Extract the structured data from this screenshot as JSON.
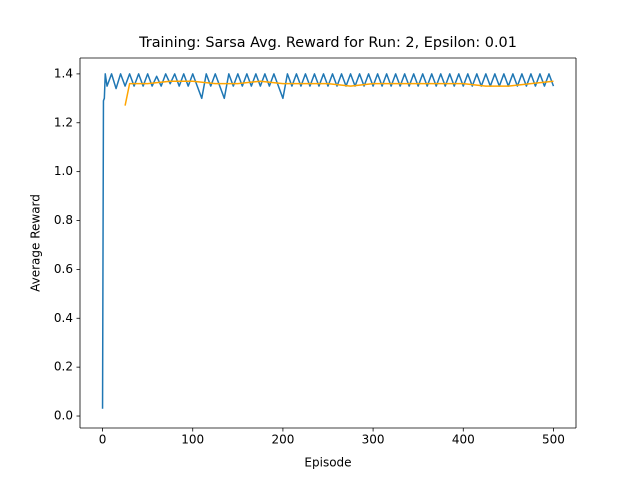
{
  "chart_data": {
    "type": "line",
    "title": "Training: Sarsa Avg. Reward for Run: 2, Epsilon: 0.01",
    "x_label": "Episode",
    "y_label": "Average Reward",
    "xlim": [
      -25,
      525
    ],
    "ylim": [
      -0.049,
      1.465
    ],
    "xticks": [
      0,
      100,
      200,
      300,
      400,
      500
    ],
    "yticks": [
      {
        "value": 0,
        "label": "0.0"
      },
      0.2,
      0.4,
      0.6,
      0.8,
      {
        "value": 1,
        "label": "1.0"
      },
      1.2,
      1.4
    ],
    "series": [
      {
        "color": "#1f77b4",
        "x": [
          0,
          1,
          2,
          3,
          5,
          10,
          15,
          20,
          25,
          30,
          35,
          40,
          45,
          50,
          55,
          60,
          65,
          70,
          75,
          80,
          85,
          90,
          95,
          100,
          105,
          110,
          115,
          120,
          125,
          130,
          135,
          140,
          145,
          150,
          155,
          160,
          165,
          170,
          175,
          180,
          185,
          190,
          195,
          200,
          205,
          210,
          215,
          220,
          225,
          230,
          235,
          240,
          245,
          250,
          255,
          260,
          265,
          270,
          275,
          280,
          285,
          290,
          295,
          300,
          305,
          310,
          315,
          320,
          325,
          330,
          335,
          340,
          345,
          350,
          355,
          360,
          365,
          370,
          375,
          380,
          385,
          390,
          395,
          400,
          405,
          410,
          415,
          420,
          425,
          430,
          435,
          440,
          445,
          450,
          455,
          460,
          465,
          470,
          475,
          480,
          485,
          490,
          495,
          500
        ],
        "values": [
          0.03,
          1.29,
          1.3,
          1.4,
          1.35,
          1.4,
          1.34,
          1.4,
          1.35,
          1.4,
          1.35,
          1.4,
          1.35,
          1.4,
          1.35,
          1.39,
          1.35,
          1.4,
          1.36,
          1.4,
          1.35,
          1.4,
          1.35,
          1.4,
          1.35,
          1.3,
          1.4,
          1.35,
          1.4,
          1.35,
          1.3,
          1.4,
          1.35,
          1.4,
          1.35,
          1.4,
          1.35,
          1.4,
          1.35,
          1.4,
          1.35,
          1.4,
          1.35,
          1.3,
          1.4,
          1.35,
          1.4,
          1.35,
          1.4,
          1.35,
          1.4,
          1.35,
          1.4,
          1.35,
          1.4,
          1.35,
          1.4,
          1.35,
          1.4,
          1.35,
          1.4,
          1.35,
          1.4,
          1.35,
          1.4,
          1.35,
          1.4,
          1.35,
          1.4,
          1.35,
          1.4,
          1.35,
          1.4,
          1.35,
          1.4,
          1.35,
          1.4,
          1.35,
          1.4,
          1.35,
          1.4,
          1.35,
          1.4,
          1.35,
          1.4,
          1.35,
          1.4,
          1.35,
          1.4,
          1.35,
          1.4,
          1.35,
          1.4,
          1.35,
          1.4,
          1.35,
          1.4,
          1.35,
          1.4,
          1.35,
          1.4,
          1.35,
          1.4,
          1.35
        ]
      },
      {
        "color": "#ffa500",
        "x": [
          25,
          30,
          50,
          75,
          100,
          125,
          150,
          175,
          200,
          225,
          250,
          275,
          300,
          325,
          350,
          375,
          400,
          425,
          450,
          475,
          500
        ],
        "values": [
          1.27,
          1.36,
          1.36,
          1.37,
          1.37,
          1.36,
          1.36,
          1.37,
          1.36,
          1.36,
          1.36,
          1.35,
          1.36,
          1.36,
          1.36,
          1.36,
          1.36,
          1.35,
          1.35,
          1.36,
          1.37
        ]
      }
    ]
  }
}
